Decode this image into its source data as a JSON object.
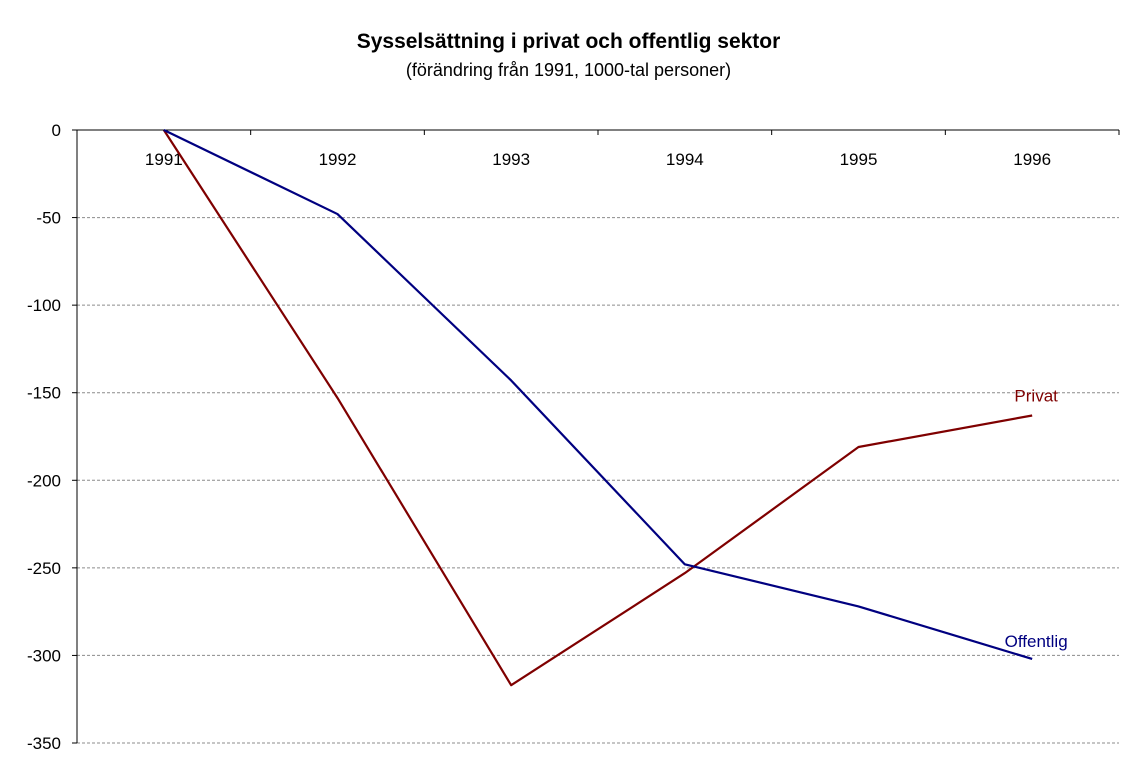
{
  "chart_data": {
    "type": "line",
    "title": "Sysselsättning i privat och offentlig sektor",
    "subtitle": "(förändring från 1991, 1000-tal personer)",
    "categories": [
      "1991",
      "1992",
      "1993",
      "1994",
      "1995",
      "1996"
    ],
    "yticks": [
      "0",
      "-50",
      "-100",
      "-150",
      "-200",
      "-250",
      "-300",
      "-350"
    ],
    "ylim": [
      -350,
      0
    ],
    "grid": true,
    "series": [
      {
        "name": "Privat",
        "color": "#7f0000",
        "values": [
          0,
          -153,
          -317,
          -253,
          -181,
          -163
        ]
      },
      {
        "name": "Offentlig",
        "color": "#000080",
        "values": [
          0,
          -48,
          -143,
          -248,
          -272,
          -302
        ]
      }
    ],
    "xlabel": "",
    "ylabel": ""
  }
}
